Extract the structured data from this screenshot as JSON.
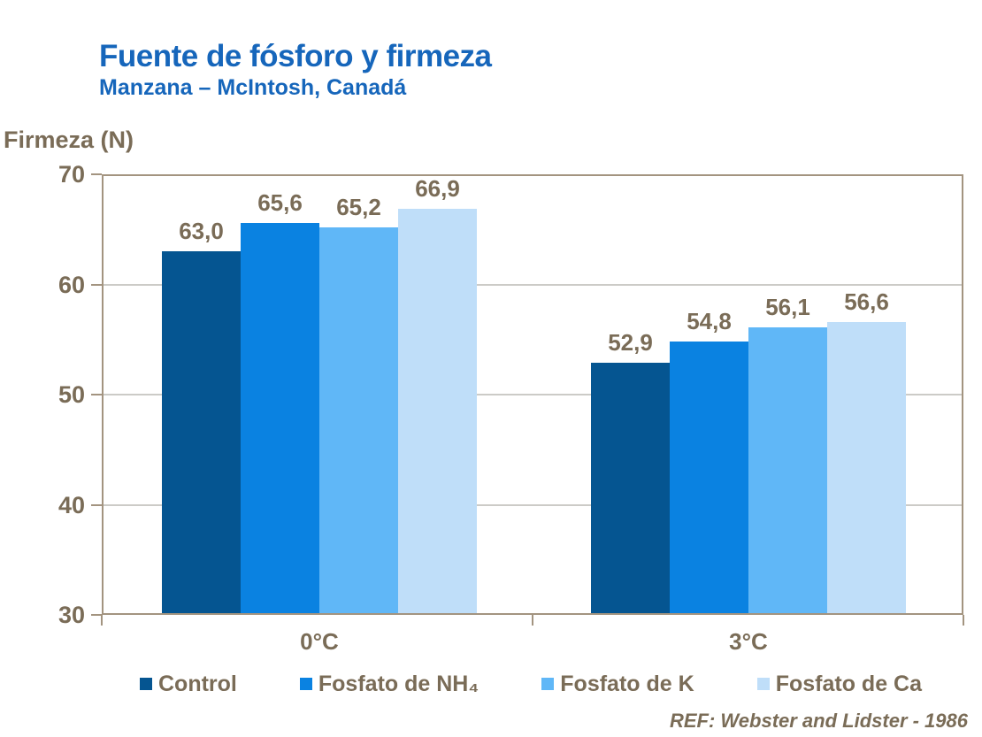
{
  "header": {
    "title": "Fuente de fósforo y firmeza",
    "subtitle": "Manzana – McIntosh, Canadá"
  },
  "footnote": "REF: Webster and Lidster - 1986",
  "colors": {
    "title_blue": "#1666bb",
    "text_brown": "#7a6c57",
    "axis_brown": "#a39480",
    "gridline_gray": "#cccbc7",
    "bar_control": "#055591",
    "bar_fosfato_nh4": "#0a82e1",
    "bar_fosfato_k": "#60b7f7",
    "bar_fosfato_ca": "#bfdef9"
  },
  "chart_data": {
    "type": "bar",
    "title": "Fuente de fósforo y firmeza",
    "subtitle": "Manzana – McIntosh, Canadá",
    "ylabel": "Firmeza (N)",
    "xlabel": "",
    "ylim": [
      30,
      70
    ],
    "yticks": [
      70,
      60,
      50,
      40,
      30
    ],
    "grid": "horizontal gridlines at 40, 50, 60",
    "legend_position": "bottom",
    "categories": [
      "0°C",
      "3°C"
    ],
    "series": [
      {
        "name": "Control",
        "color": "#055591",
        "values": [
          63.0,
          52.9
        ],
        "value_labels": [
          "63,0",
          "52,9"
        ]
      },
      {
        "name": "Fosfato de NH₄",
        "color": "#0a82e1",
        "values": [
          65.6,
          54.8
        ],
        "value_labels": [
          "65,6",
          "54,8"
        ]
      },
      {
        "name": "Fosfato de K",
        "color": "#60b7f7",
        "values": [
          65.2,
          56.1
        ],
        "value_labels": [
          "65,2",
          "56,1"
        ]
      },
      {
        "name": "Fosfato de Ca",
        "color": "#bfdef9",
        "values": [
          66.9,
          56.6
        ],
        "value_labels": [
          "66,9",
          "56,6"
        ]
      }
    ],
    "footnote": "REF: Webster and Lidster - 1986"
  }
}
